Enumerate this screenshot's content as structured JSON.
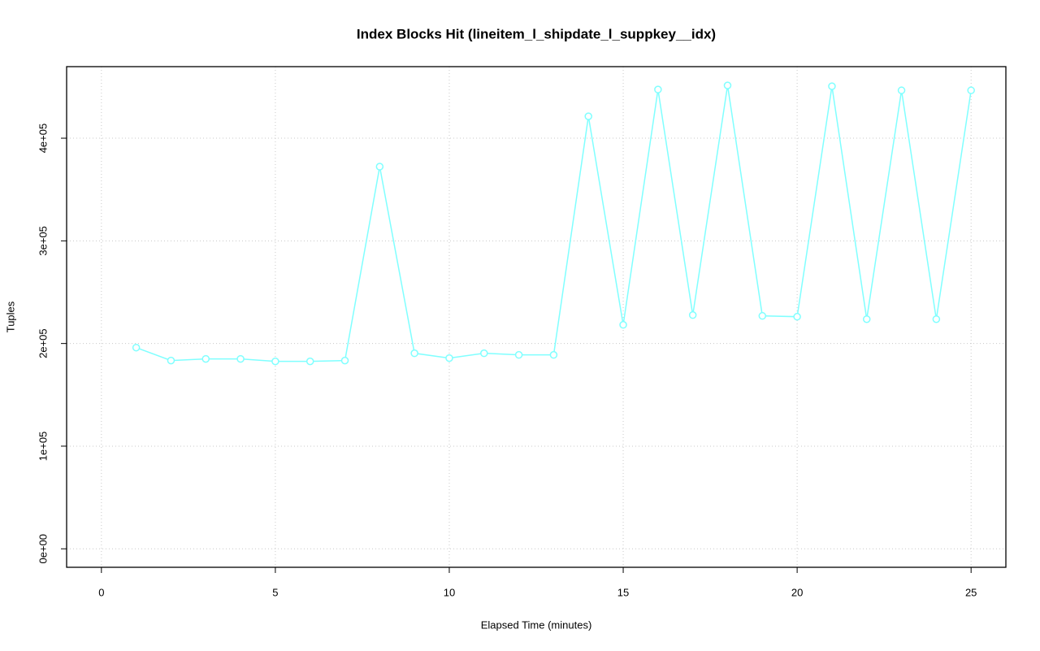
{
  "chart_data": {
    "type": "line",
    "title": "Index Blocks Hit (lineitem_l_shipdate_l_suppkey__idx)",
    "xlabel": "Elapsed Time (minutes)",
    "ylabel": "Tuples",
    "x": [
      1,
      2,
      3,
      4,
      5,
      6,
      7,
      8,
      9,
      10,
      11,
      12,
      13,
      14,
      15,
      16,
      17,
      18,
      19,
      20,
      21,
      22,
      23,
      24,
      25
    ],
    "series": [
      {
        "color": "#80ffff",
        "values": [
          196000,
          183400,
          185000,
          185000,
          182600,
          182600,
          183400,
          372300,
          190500,
          185800,
          190500,
          188900,
          188900,
          421300,
          218200,
          447400,
          227700,
          451400,
          226900,
          226100,
          450600,
          223700,
          446600,
          223700,
          446600
        ]
      }
    ],
    "xlim": [
      -1,
      26
    ],
    "ylim": [
      -18000,
      469700
    ],
    "xticks": [
      0,
      5,
      10,
      15,
      20,
      25
    ],
    "yticks": [
      {
        "value": 0,
        "label": "0e+00"
      },
      {
        "value": 100000,
        "label": "1e+05"
      },
      {
        "value": 200000,
        "label": "2e+05"
      },
      {
        "value": 300000,
        "label": "3e+05"
      },
      {
        "value": 400000,
        "label": "4e+05"
      }
    ],
    "grid": true
  }
}
